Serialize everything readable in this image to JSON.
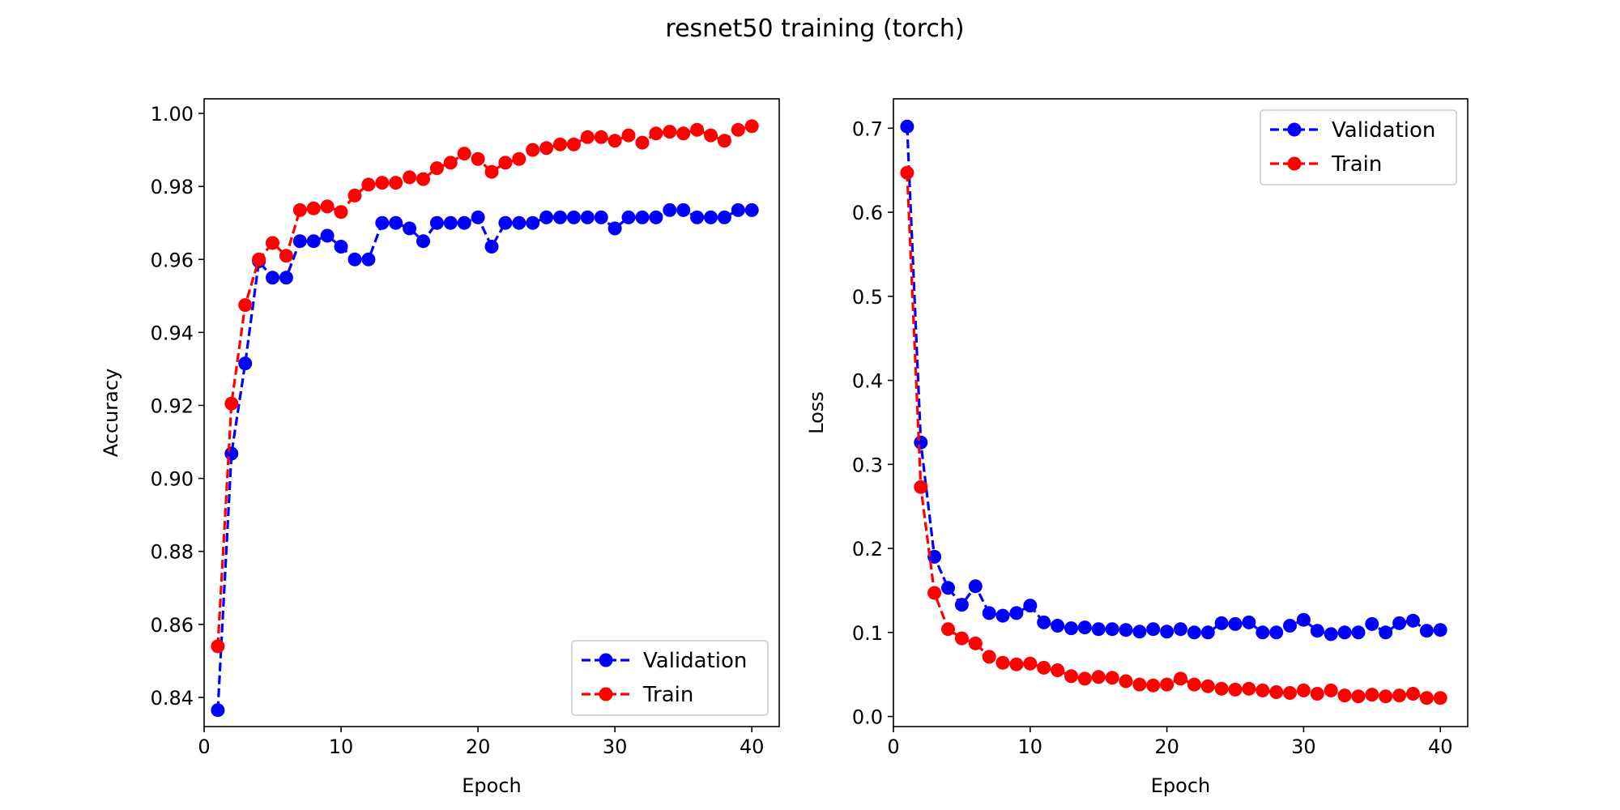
{
  "figure_title": "resnet50 training (torch)",
  "colors": {
    "validation": "#0000ff",
    "train": "#ff0000",
    "axes": "#000000",
    "legend_border": "#cccccc",
    "background": "#ffffff"
  },
  "chart_data": [
    {
      "type": "line",
      "line_style": "dashed",
      "marker": "circle",
      "xlabel": "Epoch",
      "ylabel": "Accuracy",
      "xlim": [
        0,
        42
      ],
      "ylim": [
        0.832,
        1.004
      ],
      "xticks": [
        "0",
        "10",
        "20",
        "30",
        "40"
      ],
      "yticks": [
        "0.84",
        "0.86",
        "0.88",
        "0.90",
        "0.92",
        "0.94",
        "0.96",
        "0.98",
        "1.00"
      ],
      "grid": false,
      "legend_position": "lower-right",
      "x": [
        1,
        2,
        3,
        4,
        5,
        6,
        7,
        8,
        9,
        10,
        11,
        12,
        13,
        14,
        15,
        16,
        17,
        18,
        19,
        20,
        21,
        22,
        23,
        24,
        25,
        26,
        27,
        28,
        29,
        30,
        31,
        32,
        33,
        34,
        35,
        36,
        37,
        38,
        39,
        40
      ],
      "series": [
        {
          "name": "Validation",
          "color": "#0000ff",
          "values": [
            0.8365,
            0.9068,
            0.9315,
            0.9595,
            0.955,
            0.955,
            0.965,
            0.965,
            0.9665,
            0.9635,
            0.96,
            0.96,
            0.97,
            0.97,
            0.9685,
            0.965,
            0.97,
            0.97,
            0.97,
            0.9715,
            0.9635,
            0.97,
            0.97,
            0.97,
            0.9715,
            0.9715,
            0.9715,
            0.9715,
            0.9715,
            0.9685,
            0.9715,
            0.9715,
            0.9715,
            0.9735,
            0.9735,
            0.9715,
            0.9715,
            0.9715,
            0.9735,
            0.9735
          ]
        },
        {
          "name": "Train",
          "color": "#ff0000",
          "values": [
            0.854,
            0.9205,
            0.9475,
            0.96,
            0.9645,
            0.961,
            0.9735,
            0.974,
            0.9745,
            0.973,
            0.9775,
            0.9805,
            0.981,
            0.981,
            0.9825,
            0.982,
            0.985,
            0.9865,
            0.989,
            0.9875,
            0.984,
            0.9865,
            0.9875,
            0.99,
            0.9905,
            0.9915,
            0.9915,
            0.9935,
            0.9935,
            0.9925,
            0.994,
            0.992,
            0.9945,
            0.995,
            0.9945,
            0.9955,
            0.994,
            0.9925,
            0.9955,
            0.9965
          ]
        }
      ]
    },
    {
      "type": "line",
      "line_style": "dashed",
      "marker": "circle",
      "xlabel": "Epoch",
      "ylabel": "Loss",
      "xlim": [
        0,
        42
      ],
      "ylim": [
        -0.012,
        0.735
      ],
      "xticks": [
        "0",
        "10",
        "20",
        "30",
        "40"
      ],
      "yticks": [
        "0.0",
        "0.1",
        "0.2",
        "0.3",
        "0.4",
        "0.5",
        "0.6",
        "0.7"
      ],
      "grid": false,
      "legend_position": "upper-right",
      "x": [
        1,
        2,
        3,
        4,
        5,
        6,
        7,
        8,
        9,
        10,
        11,
        12,
        13,
        14,
        15,
        16,
        17,
        18,
        19,
        20,
        21,
        22,
        23,
        24,
        25,
        26,
        27,
        28,
        29,
        30,
        31,
        32,
        33,
        34,
        35,
        36,
        37,
        38,
        39,
        40
      ],
      "series": [
        {
          "name": "Validation",
          "color": "#0000ff",
          "values": [
            0.702,
            0.326,
            0.19,
            0.153,
            0.133,
            0.155,
            0.123,
            0.12,
            0.123,
            0.132,
            0.112,
            0.108,
            0.105,
            0.106,
            0.104,
            0.104,
            0.103,
            0.101,
            0.104,
            0.101,
            0.104,
            0.1,
            0.1,
            0.111,
            0.11,
            0.112,
            0.1,
            0.1,
            0.108,
            0.115,
            0.102,
            0.098,
            0.1,
            0.1,
            0.11,
            0.1,
            0.111,
            0.114,
            0.102,
            0.103
          ]
        },
        {
          "name": "Train",
          "color": "#ff0000",
          "values": [
            0.647,
            0.273,
            0.147,
            0.104,
            0.093,
            0.087,
            0.071,
            0.064,
            0.062,
            0.063,
            0.058,
            0.055,
            0.048,
            0.045,
            0.047,
            0.046,
            0.042,
            0.038,
            0.037,
            0.038,
            0.045,
            0.038,
            0.036,
            0.033,
            0.032,
            0.033,
            0.031,
            0.029,
            0.028,
            0.031,
            0.027,
            0.031,
            0.025,
            0.024,
            0.026,
            0.024,
            0.025,
            0.027,
            0.022,
            0.022
          ]
        }
      ]
    }
  ]
}
